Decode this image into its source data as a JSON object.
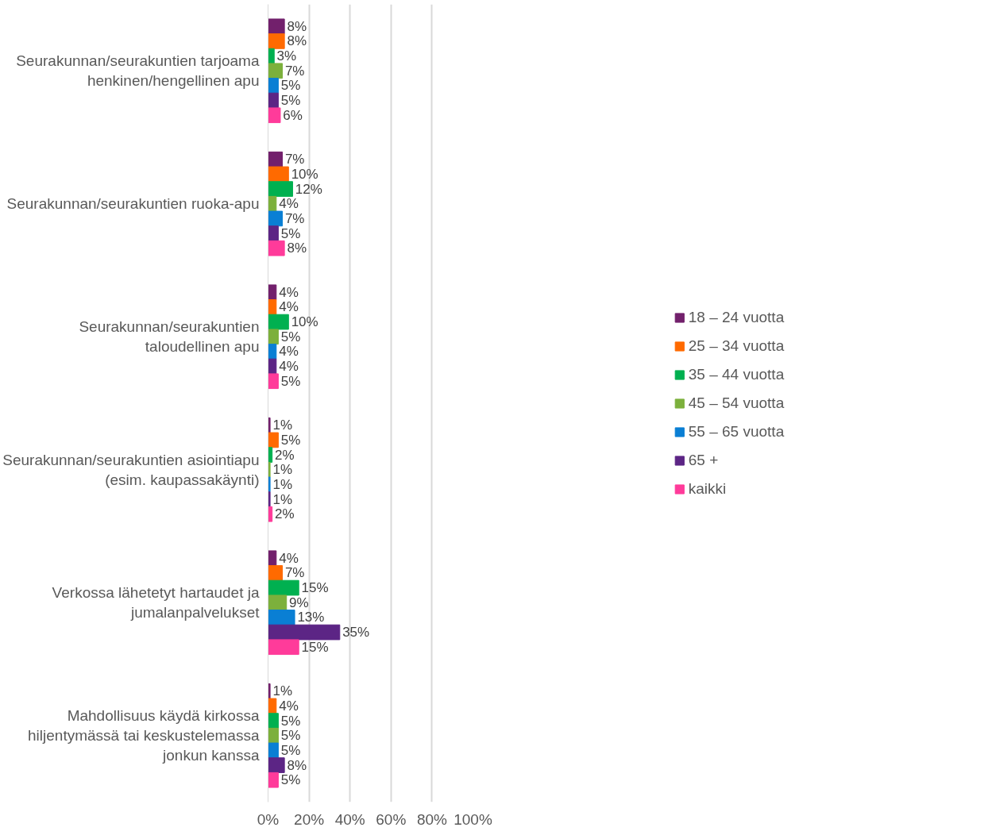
{
  "chart_data": {
    "type": "bar",
    "orientation": "horizontal",
    "categories": [
      "Seurakunnan/seurakuntien tarjoama henkinen/hengellinen apu",
      "Seurakunnan/seurakuntien ruoka-apu",
      "Seurakunnan/seurakuntien taloudellinen apu",
      "Seurakunnan/seurakuntien asiointiapu (esim. kaupassakäynti)",
      "Verkossa lähetetyt hartaudet ja jumalanpalvelukset",
      "Mahdollisuus käydä kirkossa hiljentymässä tai keskustelemassa jonkun kanssa"
    ],
    "series": [
      {
        "name": "18 – 24 vuotta",
        "color": "#72206c",
        "values": [
          8,
          7,
          4,
          1,
          4,
          1
        ],
        "value_labels": [
          "8%",
          "7%",
          "4%",
          "1%",
          "4%",
          "1%"
        ]
      },
      {
        "name": "25 – 34 vuotta",
        "color": "#ff6a00",
        "values": [
          8,
          10,
          4,
          5,
          7,
          4
        ],
        "value_labels": [
          "8%",
          "10%",
          "4%",
          "5%",
          "7%",
          "4%"
        ]
      },
      {
        "name": "35 – 44 vuotta",
        "color": "#00b050",
        "values": [
          3,
          12,
          10,
          2,
          15,
          5
        ],
        "value_labels": [
          "3%",
          "12%",
          "10%",
          "2%",
          "15%",
          "5%"
        ]
      },
      {
        "name": "45 – 54 vuotta",
        "color": "#7cb03c",
        "values": [
          7,
          4,
          5,
          1,
          9,
          5
        ],
        "value_labels": [
          "7%",
          "4%",
          "5%",
          "1%",
          "9%",
          "5%"
        ]
      },
      {
        "name": "55 – 65 vuotta",
        "color": "#0a7fd4",
        "values": [
          5,
          7,
          4,
          1,
          13,
          5
        ],
        "value_labels": [
          "5%",
          "7%",
          "4%",
          "1%",
          "13%",
          "5%"
        ]
      },
      {
        "name": "65 +",
        "color": "#5c2585",
        "values": [
          5,
          5,
          4,
          1,
          35,
          8
        ],
        "value_labels": [
          "5%",
          "5%",
          "4%",
          "1%",
          "35%",
          "8%"
        ]
      },
      {
        "name": "kaikki",
        "color": "#ff3b9a",
        "values": [
          6,
          8,
          5,
          2,
          15,
          5
        ],
        "value_labels": [
          "6%",
          "8%",
          "5%",
          "2%",
          "15%",
          "5%"
        ]
      }
    ],
    "xlim": [
      0,
      100
    ],
    "xticks": [
      {
        "value": 0,
        "label": "0%"
      },
      {
        "value": 20,
        "label": "20%"
      },
      {
        "value": 40,
        "label": "40%"
      },
      {
        "value": 60,
        "label": "60%"
      },
      {
        "value": 80,
        "label": "80%"
      },
      {
        "value": 100,
        "label": "100%"
      }
    ],
    "grid": "x",
    "legend": "right"
  }
}
